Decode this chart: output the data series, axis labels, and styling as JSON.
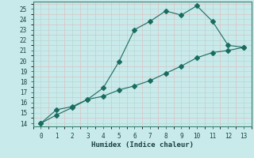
{
  "xlabel": "Humidex (Indice chaleur)",
  "bg_color": "#c8eaea",
  "grid_major_color": "#b8d8d4",
  "grid_minor_color": "#e0b8b8",
  "line_color": "#1a6b60",
  "xlim": [
    -0.5,
    13.5
  ],
  "ylim": [
    13.7,
    25.7
  ],
  "yticks": [
    14,
    15,
    16,
    17,
    18,
    19,
    20,
    21,
    22,
    23,
    24,
    25
  ],
  "xticks": [
    0,
    1,
    2,
    3,
    4,
    5,
    6,
    7,
    8,
    9,
    10,
    11,
    12,
    13
  ],
  "line1_x": [
    0,
    1,
    2,
    3,
    4,
    5,
    6,
    7,
    8,
    9,
    10,
    11,
    12,
    13
  ],
  "line1_y": [
    14.0,
    15.3,
    15.6,
    16.3,
    17.4,
    19.9,
    23.0,
    23.8,
    24.8,
    24.4,
    25.3,
    23.8,
    21.5,
    21.3
  ],
  "line2_x": [
    0,
    1,
    2,
    3,
    4,
    5,
    6,
    7,
    8,
    9,
    10,
    11,
    12,
    13
  ],
  "line2_y": [
    14.0,
    14.8,
    15.5,
    16.3,
    16.6,
    17.2,
    17.6,
    18.1,
    18.8,
    19.5,
    20.3,
    20.8,
    21.0,
    21.3
  ],
  "marker_size": 3
}
